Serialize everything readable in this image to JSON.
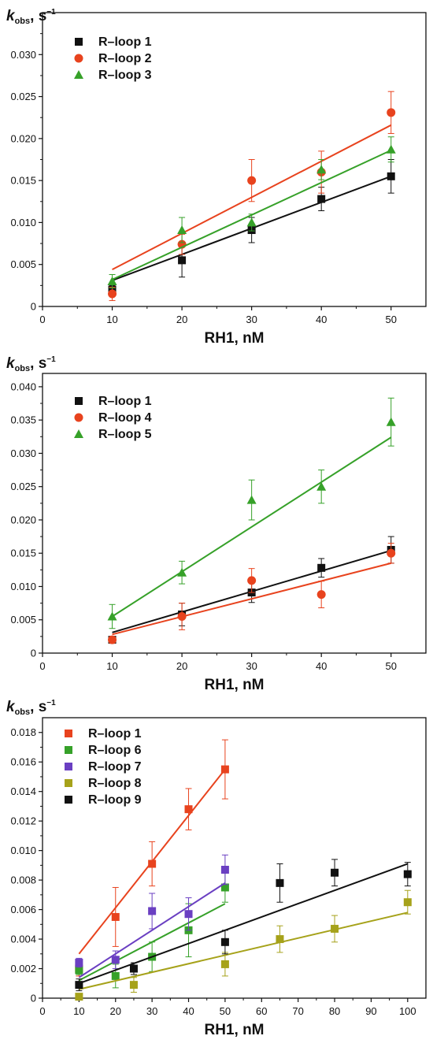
{
  "chart_data": [
    {
      "type": "scatter",
      "ylabel": {
        "k": "k",
        "sub": "obs",
        "unit": ", s",
        "sup": "−1"
      },
      "xlabel": "RH1, nM",
      "xlim": [
        0,
        55
      ],
      "ylim": [
        0,
        0.035
      ],
      "xticks": [
        "0",
        "10",
        "20",
        "30",
        "40",
        "50"
      ],
      "yticks": [
        "0",
        "0.005",
        "0.010",
        "0.015",
        "0.020",
        "0.025",
        "0.030"
      ],
      "legend_position": "top-left",
      "series": [
        {
          "name": "R–loop 1",
          "marker": "square",
          "color": "#111111",
          "x": [
            10,
            20,
            30,
            40,
            50
          ],
          "y": [
            0.002,
            0.0055,
            0.0091,
            0.0128,
            0.0155
          ],
          "err": [
            0.0005,
            0.002,
            0.0015,
            0.0014,
            0.002
          ],
          "fit": [
            0.0031,
            0.0155
          ]
        },
        {
          "name": "R–loop 2",
          "marker": "circle",
          "color": "#e8431e",
          "x": [
            10,
            20,
            30,
            40,
            50
          ],
          "y": [
            0.0015,
            0.0074,
            0.015,
            0.016,
            0.0231
          ],
          "err": [
            0.0008,
            0.0012,
            0.0025,
            0.0025,
            0.0025
          ],
          "fit": [
            0.0044,
            0.0216
          ]
        },
        {
          "name": "R–loop 3",
          "marker": "triangle",
          "color": "#36a129",
          "x": [
            10,
            20,
            30,
            40,
            50
          ],
          "y": [
            0.003,
            0.0091,
            0.01,
            0.0163,
            0.0187
          ],
          "err": [
            0.0008,
            0.0015,
            0.001,
            0.0012,
            0.0015
          ],
          "fit": [
            0.0032,
            0.0186
          ]
        }
      ]
    },
    {
      "type": "scatter",
      "ylabel": {
        "k": "k",
        "sub": "obs",
        "unit": ", s",
        "sup": "−1"
      },
      "xlabel": "RH1, nM",
      "xlim": [
        0,
        55
      ],
      "ylim": [
        0,
        0.042
      ],
      "xticks": [
        "0",
        "10",
        "20",
        "30",
        "40",
        "50"
      ],
      "yticks": [
        "0",
        "0.005",
        "0.010",
        "0.015",
        "0.020",
        "0.025",
        "0.030",
        "0.035",
        "0.040"
      ],
      "legend_position": "top-left",
      "series": [
        {
          "name": "R–loop 1",
          "marker": "square",
          "color": "#111111",
          "x": [
            10,
            20,
            30,
            40,
            50
          ],
          "y": [
            0.002,
            0.0058,
            0.0091,
            0.0128,
            0.0155
          ],
          "err": [
            0.0005,
            0.0017,
            0.0015,
            0.0014,
            0.002
          ],
          "fit": [
            0.0031,
            0.0154
          ]
        },
        {
          "name": "R–loop 4",
          "marker": "circle",
          "color": "#e8431e",
          "x": [
            10,
            20,
            30,
            40,
            50
          ],
          "y": [
            0.002,
            0.0055,
            0.0109,
            0.0088,
            0.015
          ],
          "err": [
            0.0005,
            0.002,
            0.0018,
            0.002,
            0.0015
          ],
          "fit": [
            0.0028,
            0.0135
          ]
        },
        {
          "name": "R–loop 5",
          "marker": "triangle",
          "color": "#36a129",
          "x": [
            10,
            20,
            30,
            40,
            50
          ],
          "y": [
            0.0055,
            0.0121,
            0.023,
            0.025,
            0.0347
          ],
          "err": [
            0.0018,
            0.0017,
            0.003,
            0.0025,
            0.0036
          ],
          "fit": [
            0.0055,
            0.0324
          ]
        }
      ]
    },
    {
      "type": "scatter",
      "ylabel": {
        "k": "k",
        "sub": "obs",
        "unit": ", s",
        "sup": "−1"
      },
      "xlabel": "RH1, nM",
      "xlim": [
        0,
        105
      ],
      "ylim": [
        0,
        0.019
      ],
      "xticks": [
        "0",
        "10",
        "20",
        "30",
        "40",
        "50",
        "60",
        "70",
        "80",
        "90",
        "100"
      ],
      "yticks": [
        "0",
        "0.002",
        "0.004",
        "0.006",
        "0.008",
        "0.010",
        "0.012",
        "0.014",
        "0.016",
        "0.018"
      ],
      "legend_position": "top-left",
      "series": [
        {
          "name": "R–loop 1",
          "marker": "square",
          "color": "#e8431e",
          "x": [
            10,
            20,
            30,
            40,
            50
          ],
          "y": [
            0.002,
            0.0055,
            0.0091,
            0.0128,
            0.0155
          ],
          "err": [
            0.0005,
            0.002,
            0.0015,
            0.0014,
            0.002
          ],
          "fit": [
            0.003,
            0.0155
          ],
          "fit_x": [
            10,
            50
          ]
        },
        {
          "name": "R–loop 6",
          "marker": "square",
          "color": "#36a129",
          "x": [
            10,
            20,
            30,
            40,
            50
          ],
          "y": [
            0.0019,
            0.0015,
            0.0028,
            0.0046,
            0.0075
          ],
          "err": [
            0.0003,
            0.0008,
            0.001,
            0.0018,
            0.001
          ],
          "fit": [
            0.0012,
            0.0064
          ],
          "fit_x": [
            10,
            50
          ]
        },
        {
          "name": "R–loop 7",
          "marker": "square",
          "color": "#6a3fc2",
          "x": [
            10,
            20,
            30,
            40,
            50
          ],
          "y": [
            0.0024,
            0.0026,
            0.0059,
            0.0057,
            0.0087
          ],
          "err": [
            0.0003,
            0.0006,
            0.0012,
            0.0011,
            0.001
          ],
          "fit": [
            0.0014,
            0.0078
          ],
          "fit_x": [
            10,
            50
          ]
        },
        {
          "name": "R–loop 8",
          "marker": "square",
          "color": "#a6a21a",
          "x": [
            10,
            25,
            50,
            65,
            80,
            100
          ],
          "y": [
            0.0001,
            0.0009,
            0.0023,
            0.004,
            0.0047,
            0.0065
          ],
          "err": [
            0.0002,
            0.0005,
            0.0008,
            0.0009,
            0.0009,
            0.0008
          ],
          "fit": [
            0.0006,
            0.0058
          ],
          "fit_x": [
            10,
            100
          ]
        },
        {
          "name": "R–loop 9",
          "marker": "square",
          "color": "#111111",
          "x": [
            10,
            25,
            50,
            65,
            80,
            100
          ],
          "y": [
            0.0009,
            0.002,
            0.0038,
            0.0078,
            0.0085,
            0.0084
          ],
          "err": [
            0.0004,
            0.0004,
            0.0008,
            0.0013,
            0.0009,
            0.0008
          ],
          "fit": [
            0.001,
            0.0091
          ],
          "fit_x": [
            10,
            100
          ]
        }
      ]
    }
  ]
}
